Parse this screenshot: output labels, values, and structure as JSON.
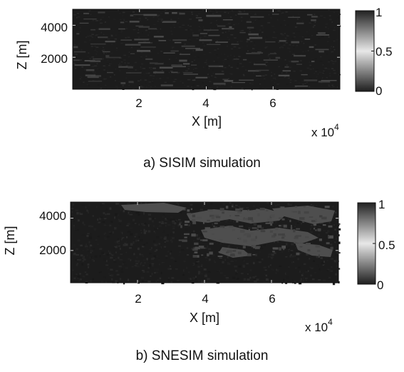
{
  "chart_data": [
    {
      "type": "heatmap",
      "caption": "a) SISIM simulation",
      "xlabel": "X [m]",
      "ylabel": "Z [m]",
      "x_ticks": [
        "2",
        "4",
        "6"
      ],
      "x_tick_values": [
        20000,
        40000,
        60000
      ],
      "x_exponent": "x 10",
      "x_exponent_power": "4",
      "y_ticks": [
        "2000",
        "4000"
      ],
      "y_tick_values": [
        2000,
        4000
      ],
      "xlim": [
        0,
        80000
      ],
      "ylim": [
        0,
        5000
      ],
      "colorbar": {
        "ticks": [
          "0",
          "0.5",
          "1"
        ],
        "values": [
          0,
          0.5,
          1
        ],
        "range": [
          0,
          1
        ]
      },
      "pattern": "sparse thin horizontal lenses of high values dispersed through a low-value background"
    },
    {
      "type": "heatmap",
      "caption": "b) SNESIM simulation",
      "xlabel": "X [m]",
      "ylabel": "Z [m]",
      "x_ticks": [
        "2",
        "4",
        "6"
      ],
      "x_tick_values": [
        20000,
        40000,
        60000
      ],
      "x_exponent": "x 10",
      "x_exponent_power": "4",
      "y_ticks": [
        "2000",
        "4000"
      ],
      "y_tick_values": [
        2000,
        4000
      ],
      "xlim": [
        0,
        80000
      ],
      "ylim": [
        0,
        5000
      ],
      "colorbar": {
        "ticks": [
          "0",
          "0.5",
          "1"
        ],
        "values": [
          0,
          0.5,
          1
        ],
        "range": [
          0,
          1
        ]
      },
      "pattern": "connected channel-like body of higher values in the upper center and right, low values elsewhere"
    }
  ],
  "colors": {
    "low": "#1e1e1e",
    "mid": "#e6e6e6",
    "high": "#202020",
    "feature": "#4a4a4a"
  }
}
